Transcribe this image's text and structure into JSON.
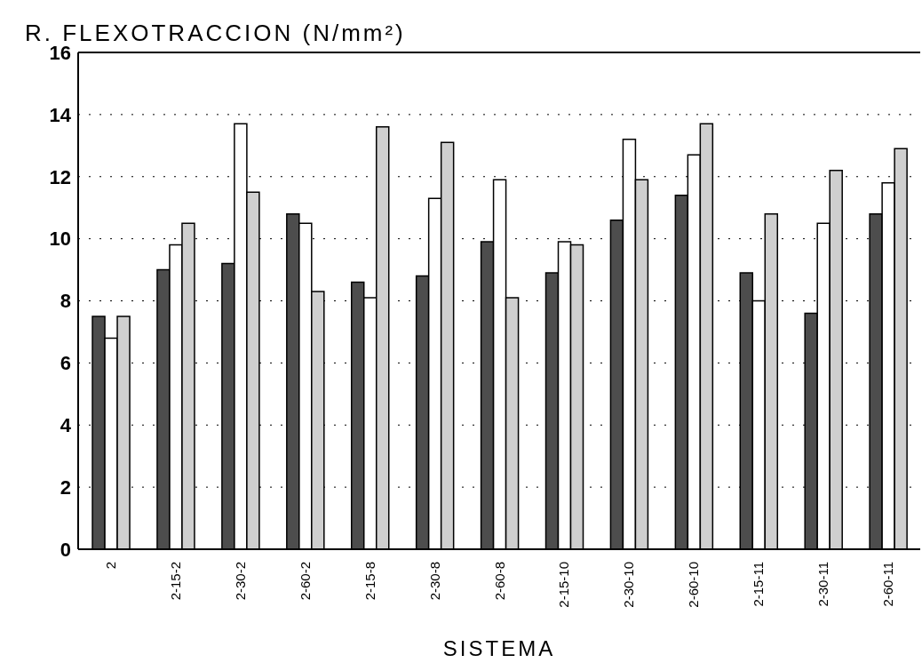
{
  "chart_data": {
    "type": "bar",
    "title": "R. FLEXOTRACCION (N/mm²)",
    "xlabel": "SISTEMA",
    "categories": [
      "2",
      "2-15-2",
      "2-30-2",
      "2-60-2",
      "2-15-8",
      "2-30-8",
      "2-60-8",
      "2-15-10",
      "2-30-10",
      "2-60-10",
      "2-15-11",
      "2-30-11",
      "2-60-11"
    ],
    "series": [
      {
        "color": "#4d4d4d",
        "values": [
          7.5,
          9.0,
          9.2,
          10.8,
          8.6,
          8.8,
          9.9,
          8.9,
          10.6,
          11.4,
          8.9,
          7.6,
          10.8
        ]
      },
      {
        "color": "#ffffff",
        "values": [
          6.8,
          9.8,
          13.7,
          10.5,
          8.1,
          11.3,
          11.9,
          9.9,
          13.2,
          12.7,
          8.0,
          10.5,
          11.8
        ]
      },
      {
        "color": "#cfcfcf",
        "values": [
          7.5,
          10.5,
          11.5,
          8.3,
          13.6,
          13.1,
          8.1,
          9.8,
          11.9,
          13.7,
          10.8,
          12.2,
          12.9
        ]
      }
    ],
    "ylim": [
      0,
      16
    ],
    "yticks": [
      0,
      2,
      4,
      6,
      8,
      10,
      12,
      14,
      16
    ],
    "grid": "y",
    "legend": false
  }
}
